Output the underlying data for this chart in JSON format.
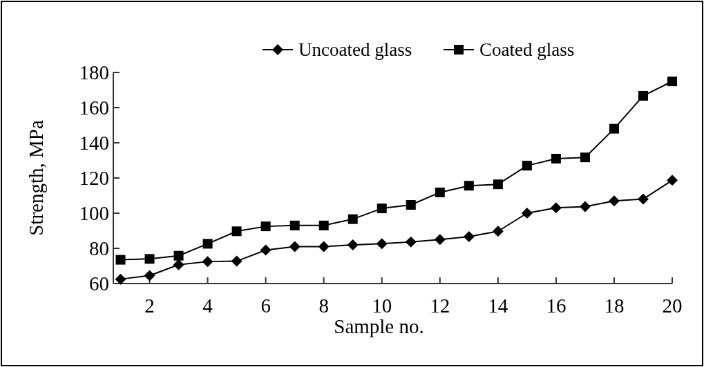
{
  "chart_data": {
    "type": "line",
    "xlabel": "Sample no.",
    "ylabel": "Strength, MPa",
    "x": [
      1,
      2,
      3,
      4,
      5,
      6,
      7,
      8,
      9,
      10,
      11,
      12,
      13,
      14,
      15,
      16,
      17,
      18,
      19,
      20
    ],
    "series": [
      {
        "name": "Uncoated glass",
        "color": "#000000",
        "marker": "diamond",
        "values": [
          62.5,
          64.5,
          70.7,
          72.5,
          72.7,
          79,
          81,
          81,
          82,
          82.6,
          83.6,
          85,
          86.7,
          89.7,
          100,
          103,
          103.7,
          107,
          108,
          118.7
        ]
      },
      {
        "name": "Coated glass",
        "color": "#000000",
        "marker": "square",
        "values": [
          73.5,
          74,
          75.8,
          82.6,
          89.7,
          92.5,
          93,
          93,
          96.6,
          102.7,
          104.7,
          111.8,
          115.6,
          116.4,
          127,
          131,
          131.7,
          148,
          166.7,
          174.9
        ]
      }
    ],
    "xlim": [
      0.75,
      20
    ],
    "xticks": [
      2,
      4,
      6,
      8,
      10,
      12,
      14,
      16,
      18,
      20
    ],
    "ylim": [
      60,
      180
    ],
    "yticks": [
      60,
      80,
      100,
      120,
      140,
      160,
      180
    ],
    "legend": "top right",
    "grid": false,
    "line_style": "solid"
  }
}
